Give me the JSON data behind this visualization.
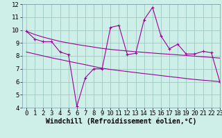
{
  "x": [
    0,
    1,
    2,
    3,
    4,
    5,
    6,
    7,
    8,
    9,
    10,
    11,
    12,
    13,
    14,
    15,
    16,
    17,
    18,
    19,
    20,
    21,
    22,
    23
  ],
  "line1": [
    9.9,
    9.3,
    9.1,
    9.1,
    8.3,
    8.1,
    4.1,
    6.3,
    7.0,
    7.0,
    10.2,
    10.35,
    8.1,
    8.2,
    10.8,
    11.75,
    9.55,
    8.55,
    8.9,
    8.15,
    8.15,
    8.35,
    8.25,
    6.0
  ],
  "line2": [
    9.9,
    9.65,
    9.45,
    9.28,
    9.12,
    9.0,
    8.88,
    8.78,
    8.68,
    8.58,
    8.5,
    8.44,
    8.38,
    8.32,
    8.27,
    8.22,
    8.17,
    8.13,
    8.08,
    8.03,
    7.98,
    7.93,
    7.88,
    7.83
  ],
  "line3": [
    8.3,
    8.15,
    8.0,
    7.85,
    7.72,
    7.58,
    7.45,
    7.32,
    7.18,
    7.05,
    6.95,
    6.87,
    6.79,
    6.71,
    6.63,
    6.56,
    6.48,
    6.4,
    6.33,
    6.25,
    6.18,
    6.12,
    6.07,
    6.01
  ],
  "color": "#990099",
  "bg_color": "#ceeee8",
  "grid_color": "#a0c8c0",
  "xlabel": "Windchill (Refroidissement éolien,°C)",
  "xlim": [
    -0.5,
    23
  ],
  "ylim": [
    4,
    12
  ],
  "xticks": [
    0,
    1,
    2,
    3,
    4,
    5,
    6,
    7,
    8,
    9,
    10,
    11,
    12,
    13,
    14,
    15,
    16,
    17,
    18,
    19,
    20,
    21,
    22,
    23
  ],
  "yticks": [
    4,
    5,
    6,
    7,
    8,
    9,
    10,
    11,
    12
  ],
  "tick_font_size": 6.5,
  "xlabel_font_size": 7,
  "marker_size": 3,
  "linewidth": 0.8
}
